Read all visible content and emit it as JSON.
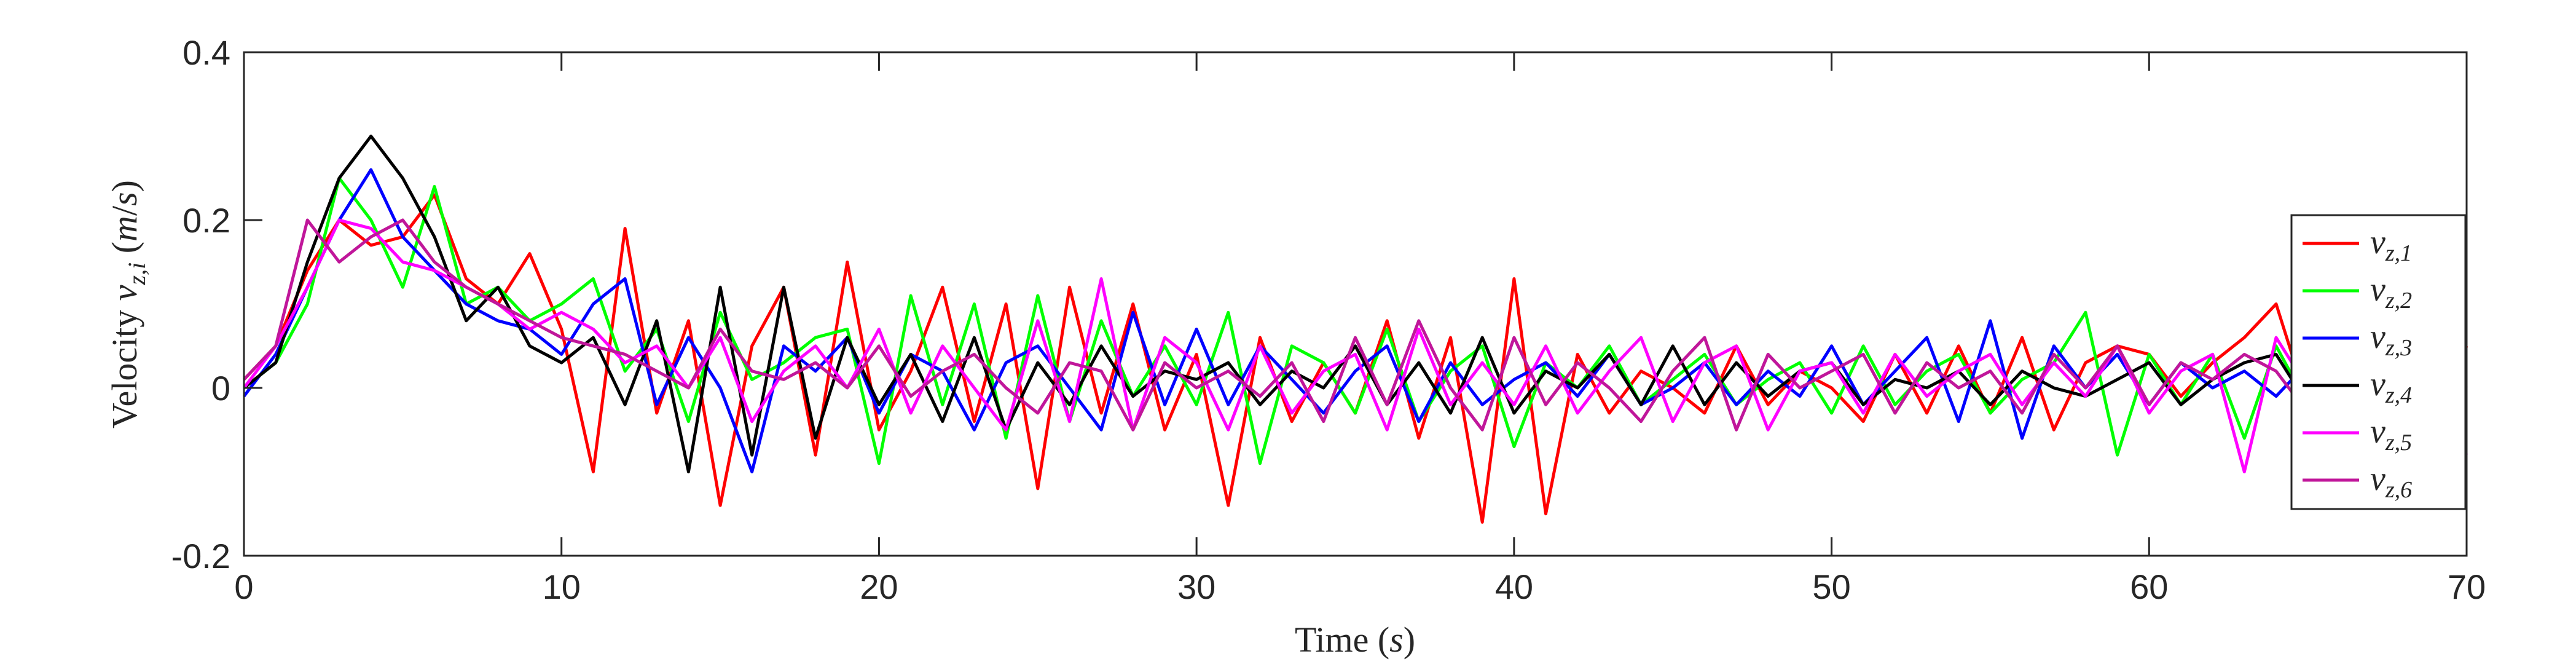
{
  "chart_data": {
    "type": "line",
    "title": "",
    "xlabel": "Time (s)",
    "ylabel": "Velocity v_{z,i} (m/s)",
    "xlim": [
      0,
      70
    ],
    "ylim": [
      -0.2,
      0.4
    ],
    "x_ticks": [
      0,
      10,
      20,
      30,
      40,
      50,
      60,
      70
    ],
    "x_tick_labels": [
      "0",
      "10",
      "20",
      "30",
      "40",
      "50",
      "60",
      "70"
    ],
    "y_ticks": [
      -0.2,
      0,
      0.2,
      0.4
    ],
    "y_tick_labels": [
      "-0.2",
      "0",
      "0.2",
      "0.4"
    ],
    "grid": false,
    "legend_position": "right-center",
    "x": [
      0,
      1,
      2,
      3,
      4,
      5,
      6,
      7,
      8,
      9,
      10,
      11,
      12,
      13,
      14,
      15,
      16,
      17,
      18,
      19,
      20,
      21,
      22,
      23,
      24,
      25,
      26,
      27,
      28,
      29,
      30,
      31,
      32,
      33,
      34,
      35,
      36,
      37,
      38,
      39,
      40,
      41,
      42,
      43,
      44,
      45,
      46,
      47,
      48,
      49,
      50,
      51,
      52,
      53,
      54,
      55,
      56,
      57,
      58,
      59,
      60,
      61,
      62,
      63,
      64,
      65,
      66,
      67,
      68,
      69,
      70
    ],
    "series": [
      {
        "name": "v_{z,1}",
        "color": "#ff0000",
        "values": [
          0.01,
          0.05,
          0.14,
          0.2,
          0.17,
          0.18,
          0.23,
          0.13,
          0.1,
          0.16,
          0.07,
          -0.1,
          0.19,
          -0.03,
          0.08,
          -0.14,
          0.05,
          0.12,
          -0.08,
          0.15,
          -0.05,
          0.02,
          0.12,
          -0.04,
          0.1,
          -0.12,
          0.12,
          -0.03,
          0.1,
          -0.05,
          0.04,
          -0.14,
          0.06,
          -0.04,
          0.03,
          -0.03,
          0.08,
          -0.06,
          0.06,
          -0.16,
          0.13,
          -0.15,
          0.04,
          -0.03,
          0.02,
          0.0,
          -0.03,
          0.05,
          -0.02,
          0.02,
          0.0,
          -0.04,
          0.04,
          -0.03,
          0.05,
          -0.03,
          0.06,
          -0.05,
          0.03,
          0.05,
          0.04,
          -0.01,
          0.03,
          0.06,
          0.1,
          -0.02,
          0.04,
          0.0,
          0.03,
          -0.04,
          0.05
        ]
      },
      {
        "name": "v_{z,2}",
        "color": "#00ff00",
        "values": [
          0.0,
          0.03,
          0.1,
          0.25,
          0.2,
          0.12,
          0.24,
          0.1,
          0.12,
          0.08,
          0.1,
          0.13,
          0.02,
          0.07,
          -0.04,
          0.09,
          0.01,
          0.03,
          0.06,
          0.07,
          -0.09,
          0.11,
          -0.02,
          0.1,
          -0.06,
          0.11,
          -0.04,
          0.08,
          -0.01,
          0.05,
          -0.02,
          0.09,
          -0.09,
          0.05,
          0.03,
          -0.03,
          0.07,
          -0.04,
          0.02,
          0.05,
          -0.07,
          0.03,
          0.0,
          0.05,
          -0.02,
          0.01,
          0.04,
          -0.02,
          0.01,
          0.03,
          -0.03,
          0.05,
          -0.02,
          0.02,
          0.04,
          -0.03,
          0.01,
          0.03,
          0.09,
          -0.08,
          0.04,
          -0.02,
          0.04,
          -0.06,
          0.05,
          -0.02,
          0.03,
          0.0,
          0.02,
          -0.02,
          0.01
        ]
      },
      {
        "name": "v_{z,3}",
        "color": "#0000ff",
        "values": [
          -0.01,
          0.04,
          0.12,
          0.2,
          0.26,
          0.18,
          0.14,
          0.1,
          0.08,
          0.07,
          0.04,
          0.1,
          0.13,
          -0.02,
          0.06,
          0.0,
          -0.1,
          0.05,
          0.02,
          0.06,
          -0.03,
          0.04,
          0.02,
          -0.05,
          0.03,
          0.05,
          0.0,
          -0.05,
          0.09,
          -0.02,
          0.07,
          -0.02,
          0.05,
          0.01,
          -0.03,
          0.02,
          0.05,
          -0.04,
          0.03,
          -0.02,
          0.01,
          0.03,
          -0.01,
          0.04,
          -0.02,
          0.0,
          0.03,
          -0.02,
          0.02,
          -0.01,
          0.05,
          -0.02,
          0.02,
          0.06,
          -0.04,
          0.08,
          -0.06,
          0.05,
          0.0,
          0.04,
          -0.02,
          0.03,
          0.0,
          0.02,
          -0.01,
          0.03,
          0.0,
          -0.01,
          0.03,
          0.0,
          0.01
        ]
      },
      {
        "name": "v_{z,4}",
        "color": "#000000",
        "values": [
          0.0,
          0.03,
          0.15,
          0.25,
          0.3,
          0.25,
          0.18,
          0.08,
          0.12,
          0.05,
          0.03,
          0.06,
          -0.02,
          0.08,
          -0.1,
          0.12,
          -0.08,
          0.12,
          -0.06,
          0.06,
          -0.02,
          0.04,
          -0.04,
          0.06,
          -0.05,
          0.03,
          -0.02,
          0.05,
          -0.01,
          0.02,
          0.01,
          0.03,
          -0.02,
          0.02,
          0.0,
          0.05,
          -0.02,
          0.03,
          -0.03,
          0.06,
          -0.03,
          0.02,
          0.0,
          0.04,
          -0.02,
          0.05,
          -0.02,
          0.03,
          -0.01,
          0.02,
          0.03,
          -0.02,
          0.01,
          0.0,
          0.02,
          -0.02,
          0.02,
          0.0,
          -0.01,
          0.01,
          0.03,
          -0.02,
          0.01,
          0.03,
          0.04,
          -0.02,
          0.02,
          0.01,
          -0.02,
          0.01,
          0.0
        ]
      },
      {
        "name": "v_{z,5}",
        "color": "#ff00ff",
        "values": [
          0.0,
          0.05,
          0.12,
          0.2,
          0.19,
          0.15,
          0.14,
          0.12,
          0.1,
          0.07,
          0.09,
          0.07,
          0.03,
          0.05,
          0.0,
          0.06,
          -0.04,
          0.02,
          0.05,
          0.0,
          0.07,
          -0.03,
          0.05,
          0.0,
          -0.05,
          0.08,
          -0.04,
          0.13,
          -0.05,
          0.06,
          0.03,
          -0.05,
          0.05,
          -0.03,
          0.02,
          0.04,
          -0.05,
          0.07,
          -0.02,
          0.03,
          -0.02,
          0.05,
          -0.03,
          0.02,
          0.06,
          -0.04,
          0.03,
          0.05,
          -0.05,
          0.02,
          0.03,
          -0.03,
          0.04,
          -0.01,
          0.02,
          0.04,
          -0.02,
          0.03,
          -0.01,
          0.05,
          -0.03,
          0.02,
          0.04,
          -0.1,
          0.06,
          0.0,
          0.02,
          -0.02,
          0.04,
          -0.02,
          -0.08
        ]
      },
      {
        "name": "v_{z,6}",
        "color": "#c0169a",
        "values": [
          0.01,
          0.05,
          0.2,
          0.15,
          0.18,
          0.2,
          0.15,
          0.12,
          0.1,
          0.08,
          0.06,
          0.05,
          0.04,
          0.02,
          0.0,
          0.07,
          0.02,
          0.01,
          0.03,
          0.0,
          0.05,
          -0.01,
          0.02,
          0.04,
          0.0,
          -0.03,
          0.03,
          0.02,
          -0.05,
          0.03,
          0.0,
          0.02,
          -0.01,
          0.03,
          -0.04,
          0.06,
          -0.02,
          0.08,
          0.0,
          -0.05,
          0.06,
          -0.02,
          0.03,
          0.0,
          -0.04,
          0.02,
          0.06,
          -0.05,
          0.04,
          0.0,
          0.02,
          0.04,
          -0.03,
          0.03,
          0.0,
          0.02,
          -0.03,
          0.04,
          0.0,
          0.05,
          -0.02,
          0.03,
          0.01,
          0.04,
          0.02,
          -0.03,
          0.04,
          0.01,
          -0.02,
          0.04,
          0.0
        ]
      }
    ]
  }
}
